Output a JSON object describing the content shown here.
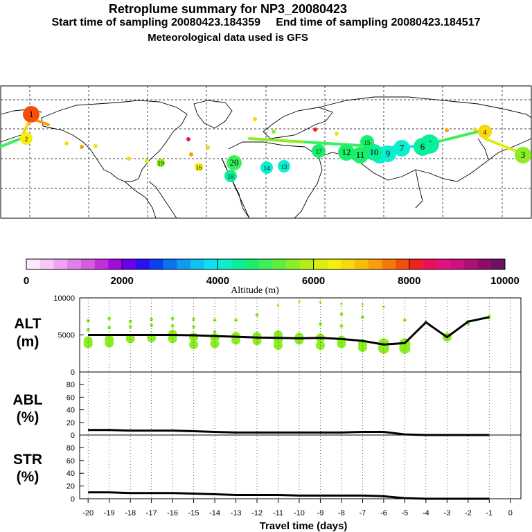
{
  "header": {
    "title": "Retroplume summary for NP3_20080423",
    "sampling": "Start time of sampling 20080423.184359     End time of sampling 20080423.184517",
    "met": "Meteorological data used is GFS"
  },
  "colorbar": {
    "label": "Altitude (m)",
    "ticks": [
      "0",
      "2000",
      "4000",
      "6000",
      "8000",
      "10000"
    ],
    "range": [
      0,
      10000
    ],
    "colors": [
      "#fde8fd",
      "#f7c8f7",
      "#efa4f3",
      "#e27de9",
      "#d55be0",
      "#c22fd9",
      "#a30ae2",
      "#6a00f0",
      "#2b10f6",
      "#0a3ff2",
      "#0b72f2",
      "#0e9bf3",
      "#0fc1f5",
      "#0ee0f2",
      "#0af0cf",
      "#0af09a",
      "#19ef6a",
      "#3bf05a",
      "#5eee3c",
      "#8cee22",
      "#b4ee12",
      "#dcee0e",
      "#f5ef0c",
      "#f7d80c",
      "#f8bd0a",
      "#f99d0a",
      "#f77808",
      "#f44e0a",
      "#f0211f",
      "#ea0f58",
      "#e4107f",
      "#cf0f83",
      "#ad0f76",
      "#8f0d68",
      "#701060"
    ]
  },
  "map": {
    "labels": [
      "1",
      "2",
      "3",
      "4",
      "5",
      "6",
      "7",
      "8",
      "9",
      "10",
      "11",
      "12",
      "13",
      "14",
      "15",
      "16",
      "17",
      "18",
      "19",
      "20"
    ]
  },
  "panels": {
    "alt": {
      "label1": "ALT",
      "label2": "(m)",
      "yticks": [
        "10000",
        "5000",
        "0"
      ]
    },
    "abl": {
      "label1": "ABL",
      "label2": "(%)",
      "yticks": [
        "80",
        "60",
        "40",
        "20",
        "0"
      ]
    },
    "str": {
      "label1": "STR",
      "label2": "(%)",
      "yticks": [
        "80",
        "60",
        "40",
        "20",
        "0"
      ]
    }
  },
  "xaxis": {
    "label": "Travel time (days)",
    "ticks": [
      "-20",
      "-19",
      "-18",
      "-17",
      "-16",
      "-15",
      "-14",
      "-13",
      "-12",
      "-11",
      "-10",
      "-9",
      "-8",
      "-7",
      "-6",
      "-5",
      "-4",
      "-3",
      "-2",
      "-1",
      "0"
    ]
  },
  "chart_data": [
    {
      "type": "line",
      "title": "ALT",
      "ylabel": "ALT (m)",
      "xlabel": "Travel time (days)",
      "x": [
        -20,
        -19,
        -18,
        -17,
        -16,
        -15,
        -14,
        -13,
        -12,
        -11,
        -10,
        -9,
        -8,
        -7,
        -6,
        -5,
        -4,
        -3,
        -2,
        -1
      ],
      "series": [
        {
          "name": "median altitude",
          "values": [
            5000,
            5000,
            5000,
            5000,
            5000,
            4950,
            4850,
            4750,
            4650,
            4600,
            4550,
            4600,
            4450,
            4200,
            3700,
            3900,
            6700,
            4700,
            6800,
            7400
          ]
        }
      ],
      "xlim": [
        -20,
        0
      ],
      "ylim": [
        0,
        10000
      ],
      "scatter_points": [
        [
          -20,
          6900
        ],
        [
          -20,
          5700
        ],
        [
          -20,
          4200
        ],
        [
          -20,
          3800
        ],
        [
          -19,
          7200
        ],
        [
          -19,
          6000
        ],
        [
          -19,
          4400
        ],
        [
          -19,
          3900
        ],
        [
          -18,
          6800
        ],
        [
          -18,
          6100
        ],
        [
          -18,
          4500
        ],
        [
          -17,
          7100
        ],
        [
          -17,
          6300
        ],
        [
          -17,
          4600
        ],
        [
          -16,
          7200
        ],
        [
          -16,
          6200
        ],
        [
          -16,
          4500
        ],
        [
          -16,
          5100
        ],
        [
          -15,
          7100
        ],
        [
          -15,
          6100
        ],
        [
          -15,
          4700
        ],
        [
          -15,
          3700
        ],
        [
          -14,
          7000
        ],
        [
          -14,
          5400
        ],
        [
          -14,
          4600
        ],
        [
          -14,
          3800
        ],
        [
          -13,
          7000
        ],
        [
          -13,
          4800
        ],
        [
          -13,
          4300
        ],
        [
          -12,
          7700
        ],
        [
          -12,
          4800
        ],
        [
          -12,
          4200
        ],
        [
          -11,
          9000
        ],
        [
          -11,
          5000
        ],
        [
          -11,
          4300
        ],
        [
          -11,
          3600
        ],
        [
          -10,
          9500
        ],
        [
          -10,
          4700
        ],
        [
          -10,
          4300
        ],
        [
          -9,
          9400
        ],
        [
          -9,
          6500
        ],
        [
          -9,
          4600
        ],
        [
          -9,
          3600
        ],
        [
          -8,
          9200
        ],
        [
          -8,
          7800
        ],
        [
          -8,
          6200
        ],
        [
          -8,
          4300
        ],
        [
          -8,
          3800
        ],
        [
          -7,
          9100
        ],
        [
          -7,
          7400
        ],
        [
          -7,
          3800
        ],
        [
          -7,
          3300
        ],
        [
          -6,
          8800
        ],
        [
          -6,
          3800
        ],
        [
          -6,
          3200
        ],
        [
          -5,
          7000
        ],
        [
          -5,
          3800
        ],
        [
          -5,
          3200
        ],
        [
          -4,
          6700
        ],
        [
          -3,
          4700
        ],
        [
          -2,
          6500
        ],
        [
          -2,
          6800
        ],
        [
          -1,
          7300
        ],
        [
          -1,
          7500
        ]
      ]
    },
    {
      "type": "line",
      "title": "ABL",
      "ylabel": "ABL (%)",
      "x": [
        -20,
        -19,
        -18,
        -17,
        -16,
        -15,
        -14,
        -13,
        -12,
        -11,
        -10,
        -9,
        -8,
        -7,
        -6,
        -5,
        -4,
        -3,
        -2,
        -1
      ],
      "series": [
        {
          "name": "ABL fraction",
          "values": [
            8,
            8,
            7,
            7,
            7,
            6,
            5,
            4,
            4,
            4,
            4,
            4,
            4,
            5,
            5,
            1,
            0,
            0,
            0,
            0
          ]
        }
      ],
      "ylim": [
        0,
        100
      ]
    },
    {
      "type": "line",
      "title": "STR",
      "ylabel": "STR (%)",
      "x": [
        -20,
        -19,
        -18,
        -17,
        -16,
        -15,
        -14,
        -13,
        -12,
        -11,
        -10,
        -9,
        -8,
        -7,
        -6,
        -5,
        -4,
        -3,
        -2,
        -1
      ],
      "series": [
        {
          "name": "STR fraction",
          "values": [
            10,
            10,
            9,
            9,
            9,
            8,
            7,
            6,
            6,
            6,
            5,
            5,
            5,
            5,
            4,
            1,
            0,
            0,
            0,
            0
          ]
        }
      ],
      "ylim": [
        0,
        100
      ]
    }
  ]
}
